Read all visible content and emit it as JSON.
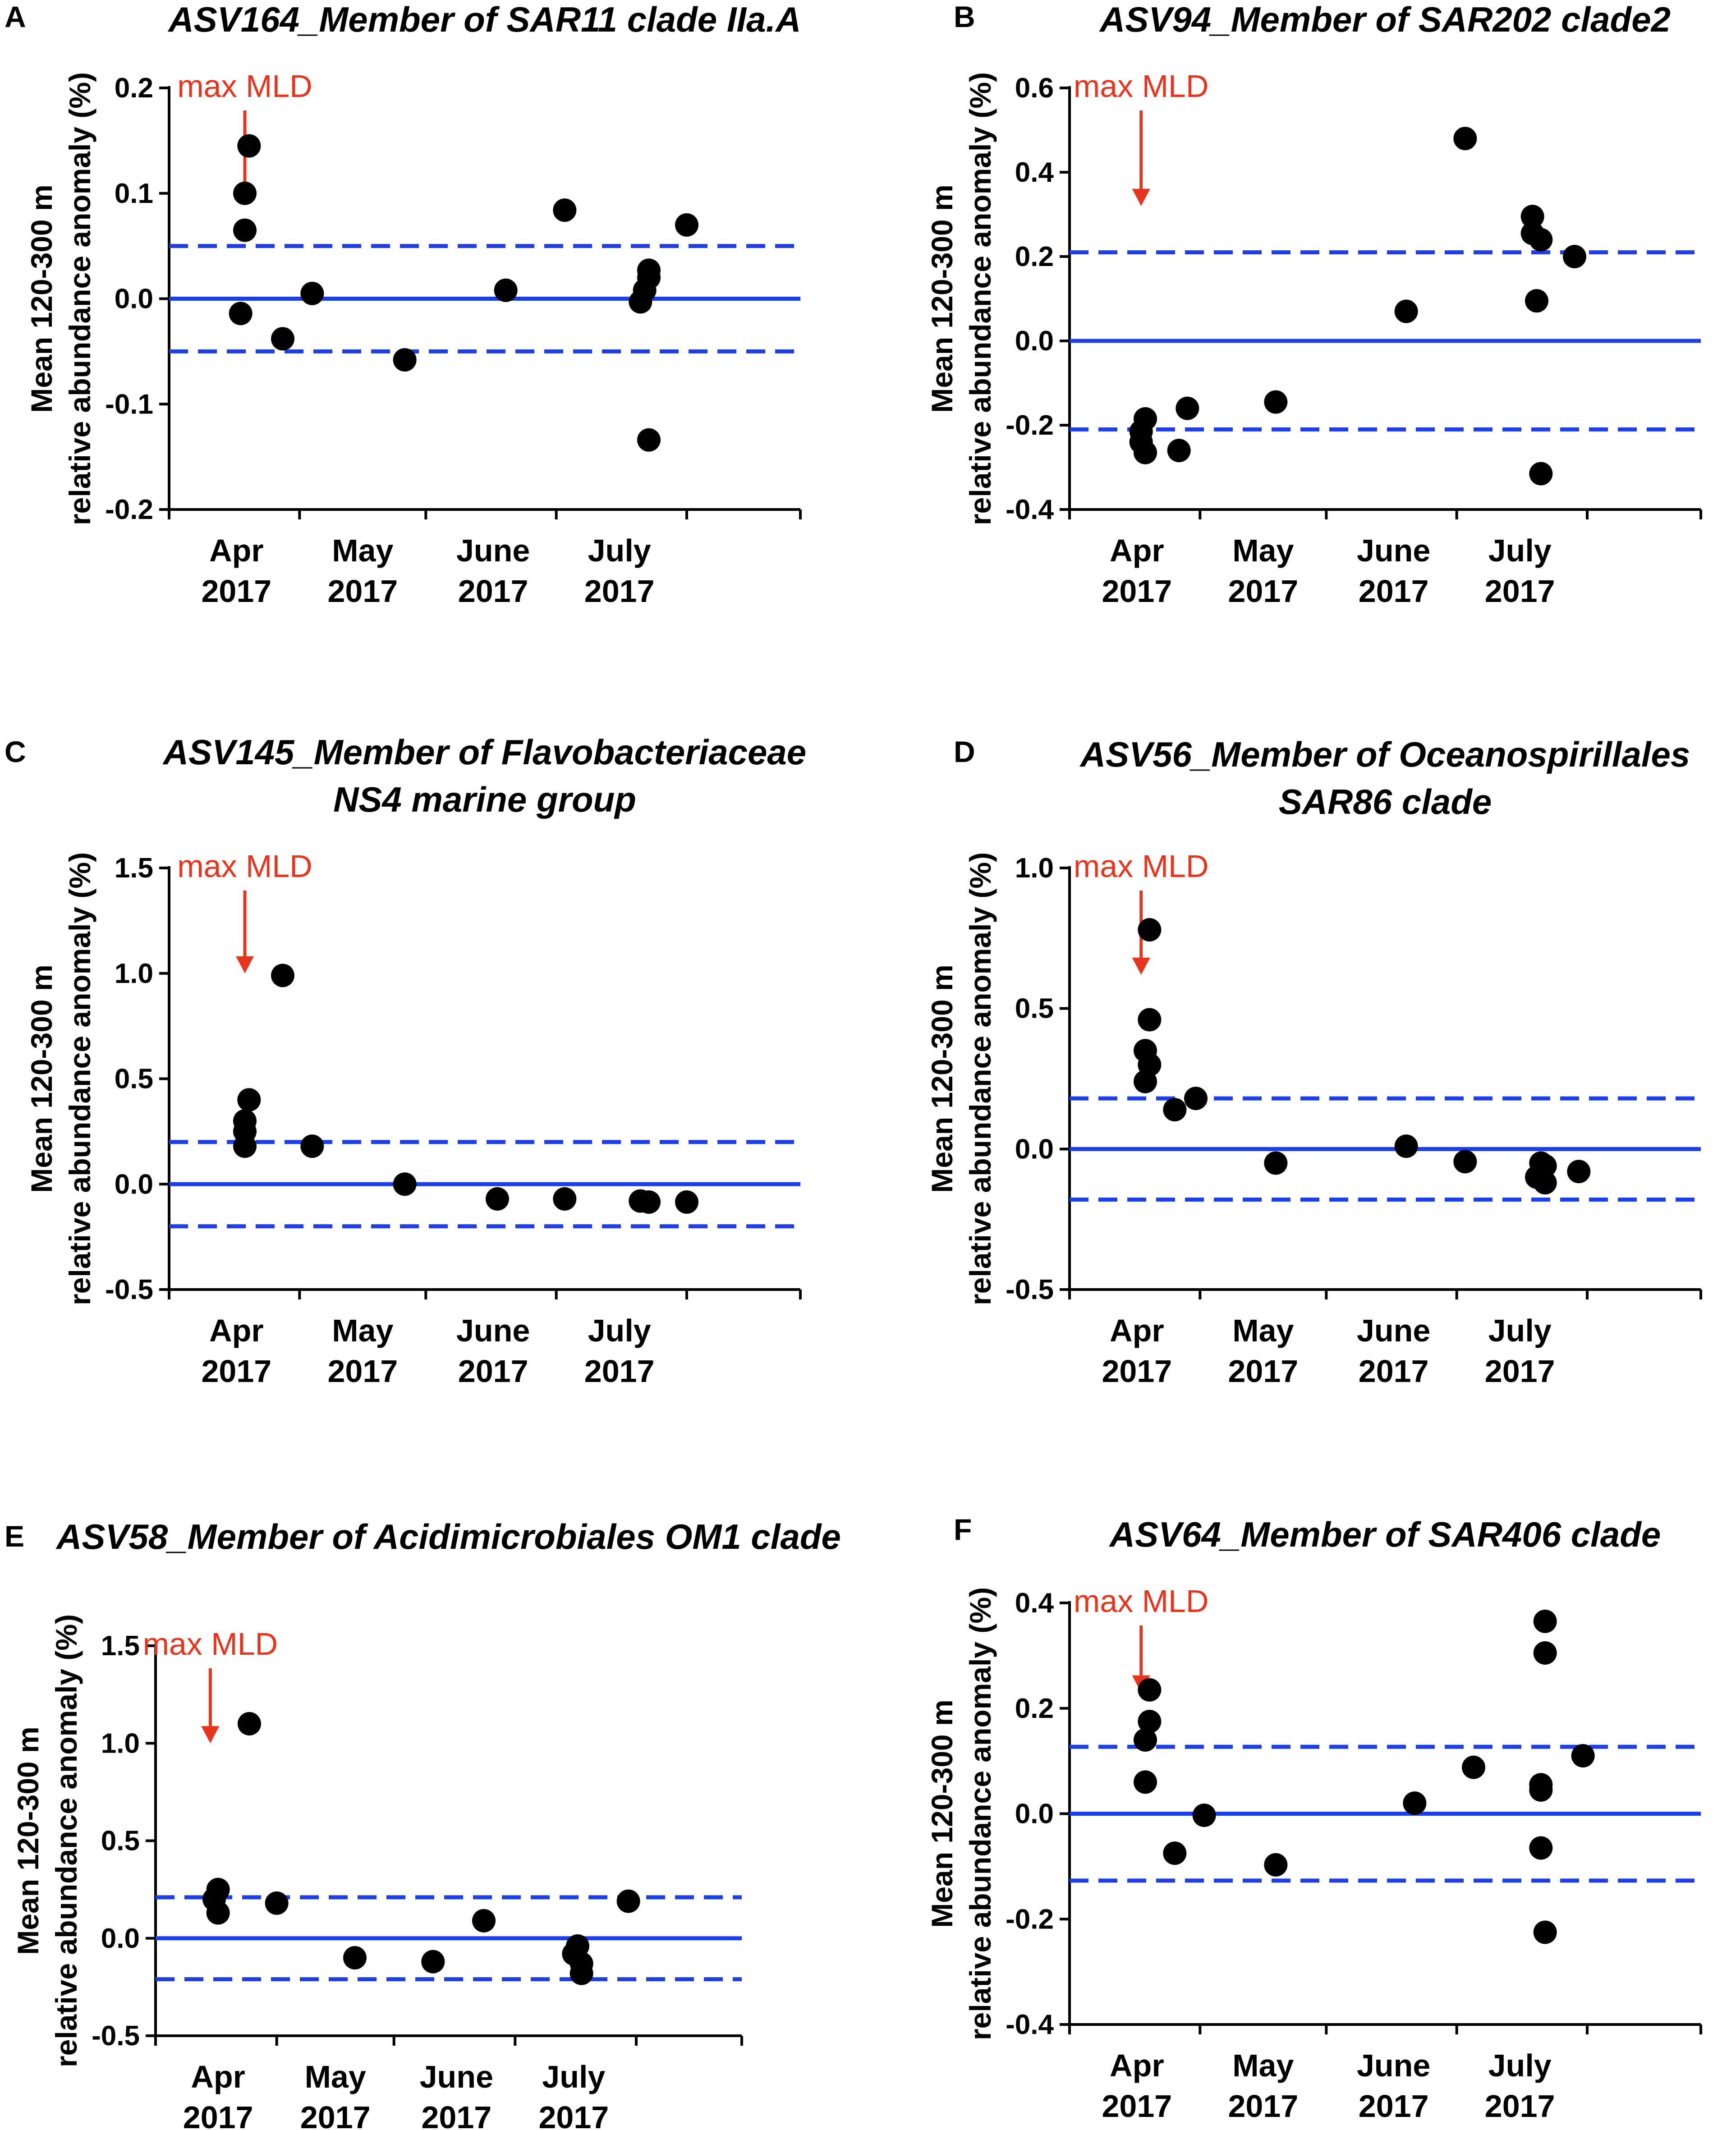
{
  "figure": {
    "colors": {
      "zero_line": "#1f3fe6",
      "threshold_line": "#1f3fe6",
      "points": "#000000",
      "annotation": "#e8341c",
      "axes": "#000000"
    }
  },
  "chart_data": [
    {
      "panel": "A",
      "type": "scatter",
      "title_lines": [
        "ASV164_Member of SAR11 clade IIa.A"
      ],
      "ylabel": [
        "Mean 120-300 m",
        "relative abundance anomaly (%)"
      ],
      "xlabel": "",
      "ylim": [
        -0.2,
        0.2
      ],
      "yticks": [
        0.2,
        0.1,
        0.0,
        -0.1,
        -0.2
      ],
      "ytick_labels": [
        "0.2",
        "0.1",
        "0.0",
        "-0.1",
        "-0.2"
      ],
      "xticks": [
        {
          "month": "Apr",
          "year": "2017",
          "day": 16
        },
        {
          "month": "May",
          "year": "2017",
          "day": 46
        },
        {
          "month": "June",
          "year": "2017",
          "day": 77
        },
        {
          "month": "July",
          "year": "2017",
          "day": 107
        }
      ],
      "xlim": [
        0,
        150
      ],
      "zero_line": 0.0,
      "thresholds": [
        0.05,
        -0.05
      ],
      "annotation": {
        "text": "max MLD",
        "day": 18,
        "y": 0.09
      },
      "points": [
        {
          "day": 18,
          "y": 0.1
        },
        {
          "day": 19,
          "y": 0.145
        },
        {
          "day": 18,
          "y": 0.065
        },
        {
          "day": 17,
          "y": -0.014
        },
        {
          "day": 27,
          "y": -0.038
        },
        {
          "day": 34,
          "y": 0.005
        },
        {
          "day": 56,
          "y": -0.058
        },
        {
          "day": 80,
          "y": 0.008
        },
        {
          "day": 94,
          "y": 0.084
        },
        {
          "day": 112,
          "y": -0.003
        },
        {
          "day": 113,
          "y": 0.008
        },
        {
          "day": 114,
          "y": 0.02
        },
        {
          "day": 114,
          "y": 0.027
        },
        {
          "day": 114,
          "y": -0.134
        },
        {
          "day": 123,
          "y": 0.07
        }
      ]
    },
    {
      "panel": "B",
      "type": "scatter",
      "title_lines": [
        "ASV94_Member of SAR202 clade2"
      ],
      "ylabel": [
        "Mean 120-300 m",
        "relative abundance anomaly (%)"
      ],
      "xlabel": "",
      "ylim": [
        -0.4,
        0.6
      ],
      "yticks": [
        0.6,
        0.4,
        0.2,
        0.0,
        -0.2,
        -0.4
      ],
      "ytick_labels": [
        "0.6",
        "0.4",
        "0.2",
        "0.0",
        "-0.2",
        "-0.4"
      ],
      "xticks": [
        {
          "month": "Apr",
          "year": "2017",
          "day": 16
        },
        {
          "month": "May",
          "year": "2017",
          "day": 46
        },
        {
          "month": "June",
          "year": "2017",
          "day": 77
        },
        {
          "month": "July",
          "year": "2017",
          "day": 107
        }
      ],
      "xlim": [
        0,
        150
      ],
      "zero_line": 0.0,
      "thresholds": [
        0.21,
        -0.21
      ],
      "annotation": {
        "text": "max MLD",
        "day": 17,
        "y": 0.32
      },
      "points": [
        {
          "day": 18,
          "y": -0.185
        },
        {
          "day": 17,
          "y": -0.215
        },
        {
          "day": 17,
          "y": -0.24
        },
        {
          "day": 18,
          "y": -0.265
        },
        {
          "day": 26,
          "y": -0.26
        },
        {
          "day": 28,
          "y": -0.16
        },
        {
          "day": 49,
          "y": -0.145
        },
        {
          "day": 80,
          "y": 0.07
        },
        {
          "day": 94,
          "y": 0.48
        },
        {
          "day": 110,
          "y": 0.295
        },
        {
          "day": 110,
          "y": 0.255
        },
        {
          "day": 112,
          "y": 0.24
        },
        {
          "day": 111,
          "y": 0.095
        },
        {
          "day": 112,
          "y": -0.315
        },
        {
          "day": 120,
          "y": 0.2
        }
      ]
    },
    {
      "panel": "C",
      "type": "scatter",
      "title_lines": [
        "ASV145_Member of Flavobacteriaceae",
        "NS4 marine group"
      ],
      "ylabel": [
        "Mean 120-300 m",
        "relative abundance anomaly (%)"
      ],
      "xlabel": "",
      "ylim": [
        -0.5,
        1.5
      ],
      "yticks": [
        1.5,
        1.0,
        0.5,
        0.0,
        -0.5
      ],
      "ytick_labels": [
        "1.5",
        "1.0",
        "0.5",
        "0.0",
        "-0.5"
      ],
      "xticks": [
        {
          "month": "Apr",
          "year": "2017",
          "day": 16
        },
        {
          "month": "May",
          "year": "2017",
          "day": 46
        },
        {
          "month": "June",
          "year": "2017",
          "day": 77
        },
        {
          "month": "July",
          "year": "2017",
          "day": 107
        }
      ],
      "xlim": [
        0,
        150
      ],
      "zero_line": 0.0,
      "thresholds": [
        0.2,
        -0.2
      ],
      "annotation": {
        "text": "max MLD",
        "day": 18,
        "y": 1.0
      },
      "points": [
        {
          "day": 19,
          "y": 0.4
        },
        {
          "day": 18,
          "y": 0.3
        },
        {
          "day": 18,
          "y": 0.25
        },
        {
          "day": 18,
          "y": 0.18
        },
        {
          "day": 27,
          "y": 0.99
        },
        {
          "day": 34,
          "y": 0.18
        },
        {
          "day": 56,
          "y": 0.0
        },
        {
          "day": 78,
          "y": -0.07
        },
        {
          "day": 94,
          "y": -0.07
        },
        {
          "day": 112,
          "y": -0.08
        },
        {
          "day": 114,
          "y": -0.085
        },
        {
          "day": 123,
          "y": -0.085
        }
      ]
    },
    {
      "panel": "D",
      "type": "scatter",
      "title_lines": [
        "ASV56_Member of Oceanospirillales",
        "SAR86 clade"
      ],
      "ylabel": [
        "Mean 120-300 m",
        "relative abundance anomaly (%)"
      ],
      "xlabel": "",
      "ylim": [
        -0.5,
        1.0
      ],
      "yticks": [
        1.0,
        0.5,
        0.0,
        -0.5
      ],
      "ytick_labels": [
        "1.0",
        "0.5",
        "0.0",
        "-0.5"
      ],
      "xticks": [
        {
          "month": "Apr",
          "year": "2017",
          "day": 16
        },
        {
          "month": "May",
          "year": "2017",
          "day": 46
        },
        {
          "month": "June",
          "year": "2017",
          "day": 77
        },
        {
          "month": "July",
          "year": "2017",
          "day": 107
        }
      ],
      "xlim": [
        0,
        150
      ],
      "zero_line": 0.0,
      "thresholds": [
        0.18,
        -0.18
      ],
      "annotation": {
        "text": "max MLD",
        "day": 17,
        "y": 0.62
      },
      "points": [
        {
          "day": 19,
          "y": 0.78
        },
        {
          "day": 19,
          "y": 0.46
        },
        {
          "day": 18,
          "y": 0.35
        },
        {
          "day": 19,
          "y": 0.3
        },
        {
          "day": 18,
          "y": 0.24
        },
        {
          "day": 25,
          "y": 0.14
        },
        {
          "day": 30,
          "y": 0.18
        },
        {
          "day": 49,
          "y": -0.05
        },
        {
          "day": 80,
          "y": 0.01
        },
        {
          "day": 94,
          "y": -0.045
        },
        {
          "day": 112,
          "y": -0.05
        },
        {
          "day": 111,
          "y": -0.1
        },
        {
          "day": 113,
          "y": -0.12
        },
        {
          "day": 113,
          "y": -0.06
        },
        {
          "day": 121,
          "y": -0.08
        }
      ]
    },
    {
      "panel": "E",
      "type": "scatter",
      "title_lines": [
        "ASV58_Member of Acidimicrobiales OM1 clade"
      ],
      "ylabel": [
        "Mean 120-300 m",
        "relative abundance anomaly (%)"
      ],
      "xlabel": "",
      "ylim": [
        -0.5,
        1.5
      ],
      "yticks": [
        1.5,
        1.0,
        0.5,
        0.0,
        -0.5
      ],
      "ytick_labels": [
        "1.5",
        "1.0",
        "0.5",
        "0.0",
        "-0.5"
      ],
      "xticks": [
        {
          "month": "Apr",
          "year": "2017",
          "day": 16
        },
        {
          "month": "May",
          "year": "2017",
          "day": 46
        },
        {
          "month": "June",
          "year": "2017",
          "day": 77
        },
        {
          "month": "July",
          "year": "2017",
          "day": 107
        }
      ],
      "xlim": [
        0,
        150
      ],
      "zero_line": 0.0,
      "thresholds": [
        0.21,
        -0.21
      ],
      "annotation": {
        "text": "max MLD",
        "day": 14,
        "y": 1.0
      },
      "points": [
        {
          "day": 16,
          "y": 0.25
        },
        {
          "day": 15,
          "y": 0.2
        },
        {
          "day": 16,
          "y": 0.13
        },
        {
          "day": 24,
          "y": 1.1
        },
        {
          "day": 31,
          "y": 0.18
        },
        {
          "day": 51,
          "y": -0.1
        },
        {
          "day": 71,
          "y": -0.12
        },
        {
          "day": 84,
          "y": 0.09
        },
        {
          "day": 108,
          "y": -0.04
        },
        {
          "day": 107,
          "y": -0.08
        },
        {
          "day": 109,
          "y": -0.13
        },
        {
          "day": 109,
          "y": -0.18
        },
        {
          "day": 121,
          "y": 0.19
        }
      ]
    },
    {
      "panel": "F",
      "type": "scatter",
      "title_lines": [
        "ASV64_Member of SAR406 clade"
      ],
      "ylabel": [
        "Mean 120-300 m",
        "relative abundance anomaly (%)"
      ],
      "xlabel": "",
      "ylim": [
        -0.4,
        0.4
      ],
      "yticks": [
        0.4,
        0.2,
        0.0,
        -0.2,
        -0.4
      ],
      "ytick_labels": [
        "0.4",
        "0.2",
        "0.0",
        "-0.2",
        "-0.4"
      ],
      "xticks": [
        {
          "month": "Apr",
          "year": "2017",
          "day": 16
        },
        {
          "month": "May",
          "year": "2017",
          "day": 46
        },
        {
          "month": "June",
          "year": "2017",
          "day": 77
        },
        {
          "month": "July",
          "year": "2017",
          "day": 107
        }
      ],
      "xlim": [
        0,
        150
      ],
      "zero_line": 0.0,
      "thresholds": [
        0.127,
        -0.127
      ],
      "annotation": {
        "text": "max MLD",
        "day": 17,
        "y": 0.23
      },
      "points": [
        {
          "day": 19,
          "y": 0.235
        },
        {
          "day": 19,
          "y": 0.175
        },
        {
          "day": 18,
          "y": 0.14
        },
        {
          "day": 18,
          "y": 0.06
        },
        {
          "day": 25,
          "y": -0.075
        },
        {
          "day": 32,
          "y": -0.003
        },
        {
          "day": 49,
          "y": -0.097
        },
        {
          "day": 82,
          "y": 0.02
        },
        {
          "day": 96,
          "y": 0.088
        },
        {
          "day": 113,
          "y": 0.365
        },
        {
          "day": 113,
          "y": 0.305
        },
        {
          "day": 112,
          "y": 0.055
        },
        {
          "day": 112,
          "y": 0.045
        },
        {
          "day": 112,
          "y": -0.065
        },
        {
          "day": 113,
          "y": -0.225
        },
        {
          "day": 122,
          "y": 0.11
        }
      ]
    }
  ]
}
